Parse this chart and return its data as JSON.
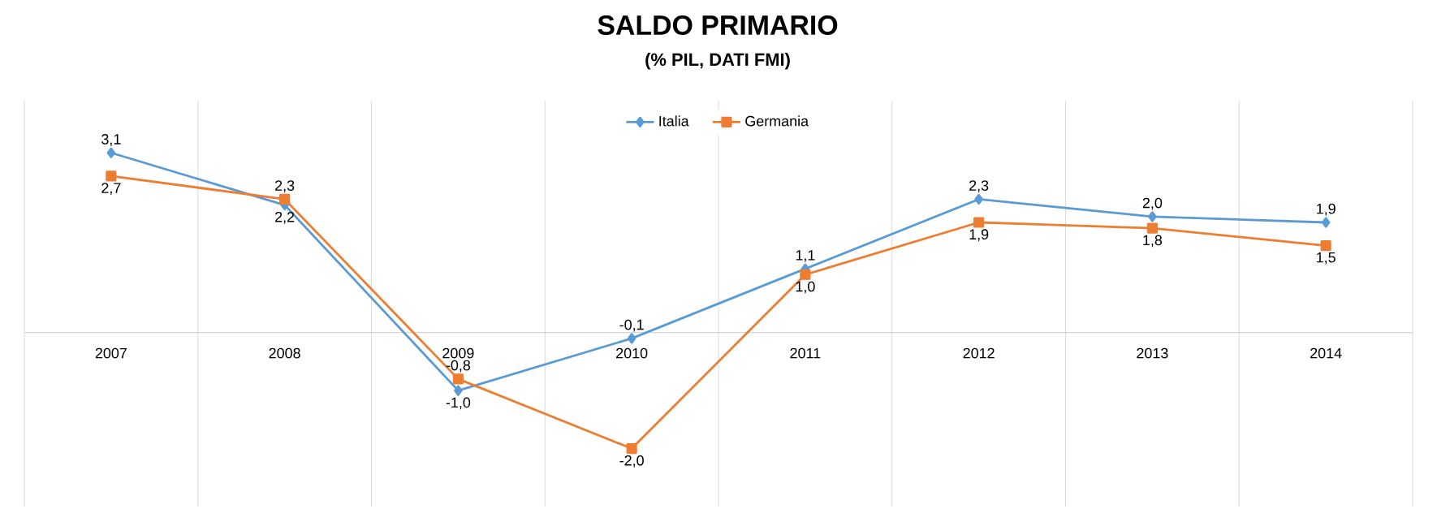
{
  "chart_data": {
    "type": "line",
    "title": "SALDO PRIMARIO",
    "subtitle": "(% PIL, DATI FMI)",
    "categories": [
      "2007",
      "2008",
      "2009",
      "2010",
      "2011",
      "2012",
      "2013",
      "2014"
    ],
    "ylim": [
      -3,
      4
    ],
    "grid": "x",
    "legend": "top",
    "tick_labels": "x",
    "series": [
      {
        "name": "Italia",
        "color": "#5b9bd5",
        "marker": "diamond",
        "values": [
          3.1,
          2.2,
          -1.0,
          -0.1,
          1.1,
          2.3,
          2.0,
          1.9
        ],
        "value_labels": [
          "3,1",
          "2,2",
          "-1,0",
          "-0,1",
          "1,1",
          "2,3",
          "2,0",
          "1,9"
        ]
      },
      {
        "name": "Germania",
        "color": "#ed7d31",
        "marker": "square",
        "values": [
          2.7,
          2.3,
          -0.8,
          -2.0,
          1.0,
          1.9,
          1.8,
          1.5
        ],
        "value_labels": [
          "2,7",
          "2,3",
          "-0,8",
          "-2,0",
          "1,0",
          "1,9",
          "1,8",
          "1,5"
        ]
      }
    ]
  }
}
